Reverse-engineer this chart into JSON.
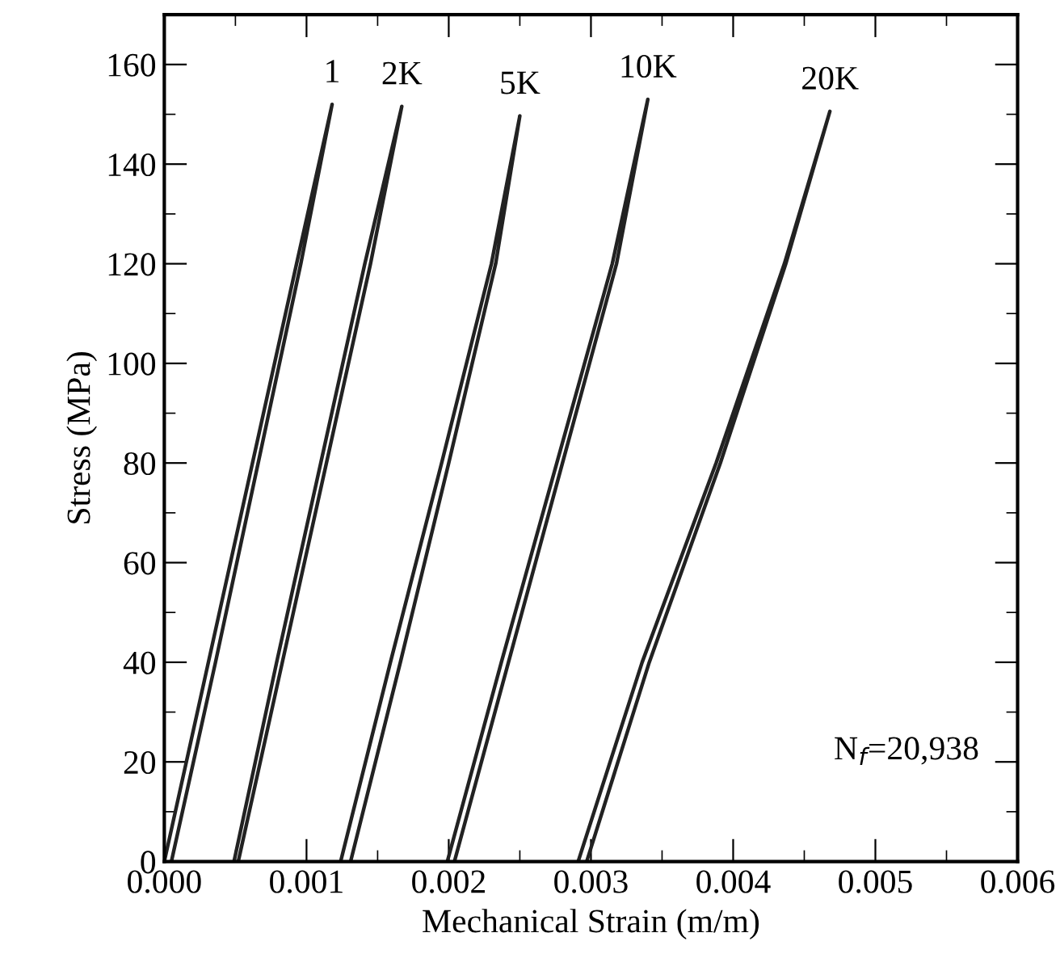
{
  "chart_data": {
    "type": "line",
    "xlabel": "Mechanical Strain (m/m)",
    "ylabel": "Stress (MPa)",
    "xlim": [
      0,
      0.006
    ],
    "ylim": [
      0,
      170
    ],
    "xticks": [
      {
        "value": 0,
        "label": "0.000"
      },
      {
        "value": 0.001,
        "label": "0.001"
      },
      {
        "value": 0.002,
        "label": "0.002"
      },
      {
        "value": 0.003,
        "label": "0.003"
      },
      {
        "value": 0.004,
        "label": "0.004"
      },
      {
        "value": 0.005,
        "label": "0.005"
      },
      {
        "value": 0.006,
        "label": "0.006"
      }
    ],
    "yticks": [
      0,
      20,
      40,
      60,
      80,
      100,
      120,
      140,
      160
    ],
    "grid": false,
    "legend": false,
    "marker": "none",
    "line_style": "solid",
    "annotations": [
      "N$_{f}$=20,938"
    ],
    "series": [
      {
        "name": "1",
        "color": "#222222",
        "x": [
          5e-05,
          0.00036,
          0.00066,
          0.00096,
          0.00118,
          0.00093,
          0.00062,
          0.00031,
          0.0
        ],
        "values": [
          0,
          40,
          80,
          120,
          152,
          120,
          80,
          40,
          0
        ]
      },
      {
        "name": "2K",
        "color": "#222222",
        "x": [
          0.00052,
          0.00083,
          0.00114,
          0.00145,
          0.00167,
          0.00141,
          0.0011,
          0.00079,
          0.00049
        ],
        "values": [
          0,
          40,
          80,
          120,
          151.6,
          120,
          80,
          40,
          0
        ]
      },
      {
        "name": "5K",
        "color": "#222222",
        "x": [
          0.00131,
          0.00166,
          0.002,
          0.00233,
          0.0025,
          0.0023,
          0.00195,
          0.00159,
          0.00124
        ],
        "values": [
          0,
          40,
          80,
          120,
          149.7,
          120,
          80,
          40,
          0
        ]
      },
      {
        "name": "10K",
        "color": "#222222",
        "x": [
          0.00204,
          0.00242,
          0.0028,
          0.00318,
          0.0034,
          0.00315,
          0.00276,
          0.00237,
          0.00199
        ],
        "values": [
          0,
          40,
          80,
          120,
          153,
          120,
          80,
          40,
          0
        ]
      },
      {
        "name": "20K",
        "color": "#222222",
        "x": [
          0.00297,
          0.00341,
          0.00391,
          0.00437,
          0.00468,
          0.00436,
          0.00388,
          0.00336,
          0.00291
        ],
        "values": [
          0,
          40,
          80,
          120,
          150.6,
          120,
          80,
          40,
          0
        ]
      }
    ]
  }
}
